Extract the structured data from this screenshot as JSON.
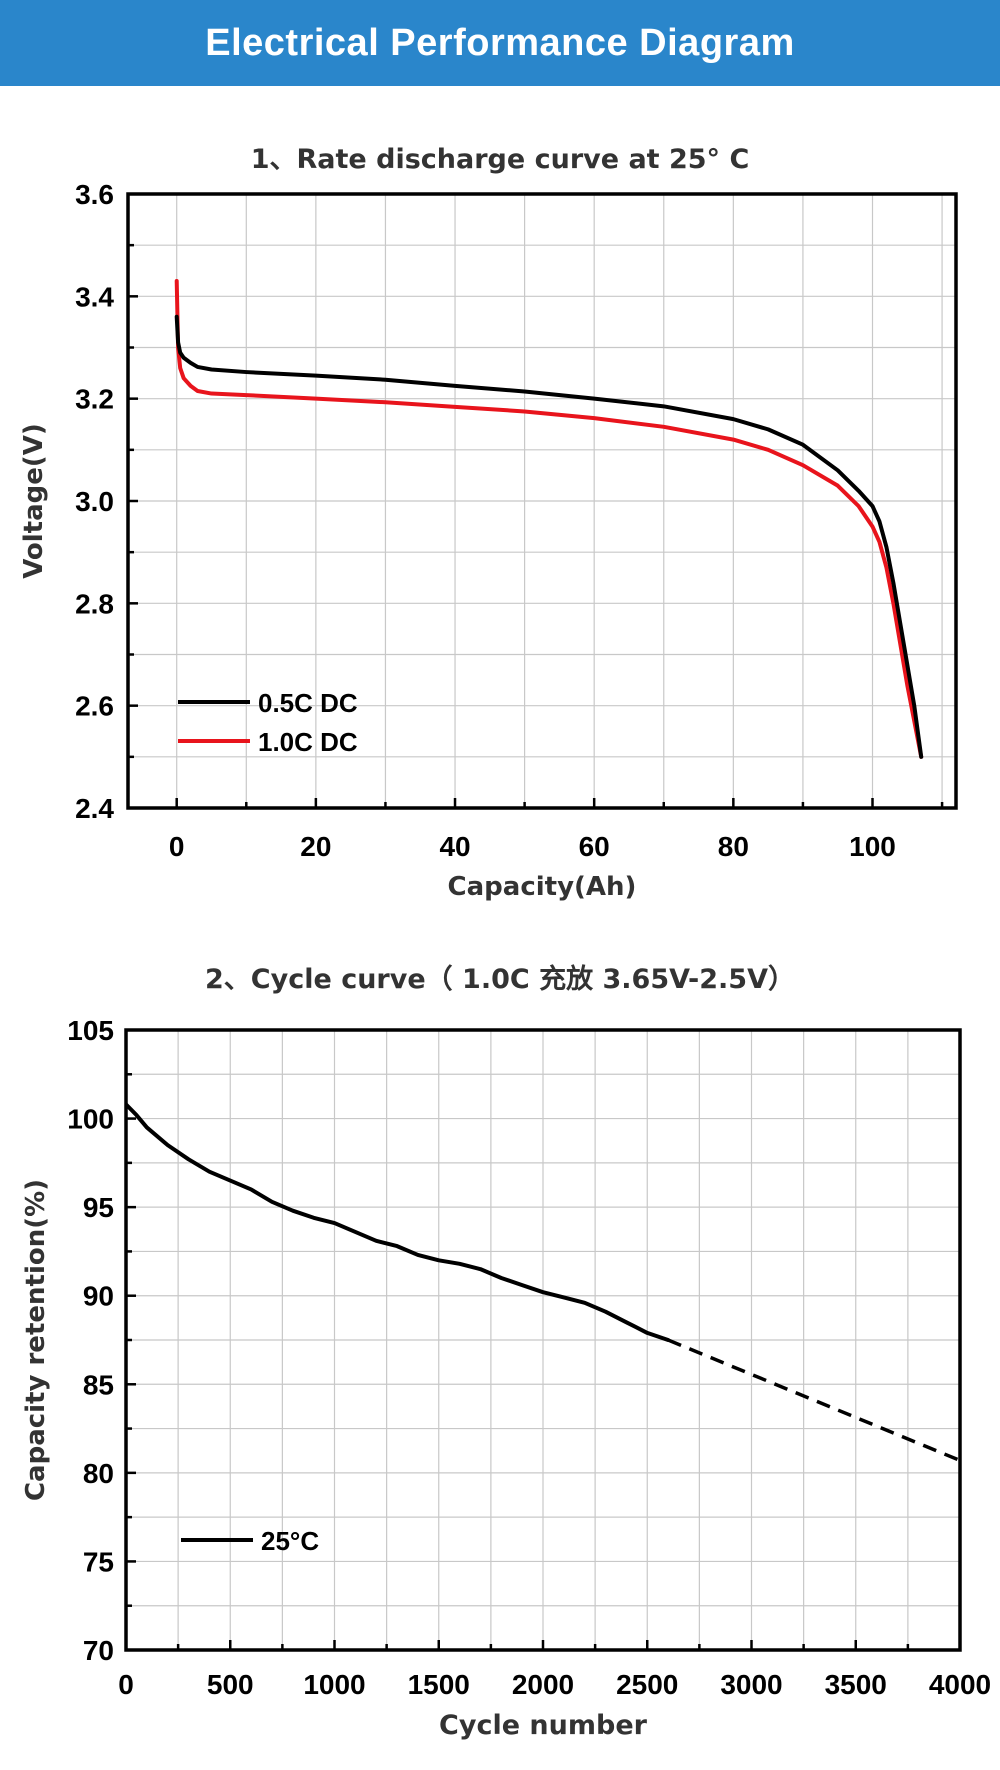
{
  "header": {
    "title": "Electrical Performance Diagram"
  },
  "chart_data": [
    {
      "type": "line",
      "title": "1、Rate discharge curve at 25° C",
      "xlabel": "Capacity(Ah)",
      "ylabel": "Voltage(V)",
      "xlim": [
        -7,
        112
      ],
      "ylim": [
        2.4,
        3.6
      ],
      "xticks": [
        0,
        20,
        40,
        60,
        80,
        100
      ],
      "yticks": [
        2.4,
        2.6,
        2.8,
        3.0,
        3.2,
        3.4,
        3.6
      ],
      "xtick_labels": [
        "0",
        "20",
        "40",
        "60",
        "80",
        "100"
      ],
      "ytick_labels": [
        "2.4",
        "2.6",
        "2.8",
        "3.0",
        "3.2",
        "3.4",
        "3.6"
      ],
      "grid": true,
      "legend_position": "bottom-left",
      "series": [
        {
          "name": "0.5C DC",
          "color": "#000000",
          "x": [
            0,
            0.2,
            0.5,
            1,
            2,
            3,
            5,
            10,
            20,
            30,
            40,
            50,
            60,
            70,
            80,
            85,
            90,
            95,
            98,
            100,
            101,
            102,
            103,
            104,
            105,
            106,
            107
          ],
          "y": [
            3.36,
            3.31,
            3.29,
            3.28,
            3.27,
            3.262,
            3.257,
            3.252,
            3.245,
            3.237,
            3.225,
            3.214,
            3.2,
            3.185,
            3.16,
            3.14,
            3.11,
            3.06,
            3.02,
            2.99,
            2.96,
            2.91,
            2.84,
            2.76,
            2.68,
            2.6,
            2.5
          ]
        },
        {
          "name": "1.0C DC",
          "color": "#e8141c",
          "x": [
            0,
            0.2,
            0.5,
            1,
            2,
            3,
            5,
            10,
            20,
            30,
            40,
            50,
            60,
            70,
            80,
            85,
            90,
            95,
            98,
            100,
            101,
            102,
            103,
            104,
            105,
            106,
            107
          ],
          "y": [
            3.43,
            3.3,
            3.26,
            3.24,
            3.225,
            3.215,
            3.21,
            3.207,
            3.2,
            3.193,
            3.184,
            3.175,
            3.162,
            3.145,
            3.12,
            3.1,
            3.07,
            3.03,
            2.99,
            2.95,
            2.92,
            2.87,
            2.8,
            2.72,
            2.64,
            2.57,
            2.5
          ]
        }
      ]
    },
    {
      "type": "line",
      "title": "2、Cycle curve（ 1.0C 充放 3.65V-2.5V）",
      "xlabel": "Cycle number",
      "ylabel": "Capacity retention(%)",
      "xlim": [
        0,
        4000
      ],
      "ylim": [
        70,
        105
      ],
      "xticks": [
        0,
        500,
        1000,
        1500,
        2000,
        2500,
        3000,
        3500,
        4000
      ],
      "yticks": [
        70,
        75,
        80,
        85,
        90,
        95,
        100,
        105
      ],
      "xtick_labels": [
        "0",
        "500",
        "1000",
        "1500",
        "2000",
        "2500",
        "3000",
        "3500",
        "4000"
      ],
      "ytick_labels": [
        "70",
        "75",
        "80",
        "85",
        "90",
        "95",
        "100",
        "105"
      ],
      "grid": true,
      "legend_position": "bottom-left",
      "series": [
        {
          "name": "25°C",
          "color": "#000000",
          "x": [
            0,
            50,
            100,
            200,
            300,
            400,
            500,
            600,
            700,
            800,
            900,
            1000,
            1100,
            1200,
            1300,
            1400,
            1500,
            1600,
            1700,
            1800,
            1900,
            2000,
            2100,
            2200,
            2300,
            2400,
            2500,
            2600
          ],
          "y": [
            100.8,
            100.2,
            99.5,
            98.5,
            97.7,
            97.0,
            96.5,
            96.0,
            95.3,
            94.8,
            94.4,
            94.1,
            93.6,
            93.1,
            92.8,
            92.3,
            92.0,
            91.8,
            91.5,
            91.0,
            90.6,
            90.2,
            89.9,
            89.6,
            89.1,
            88.5,
            87.9,
            87.5
          ]
        },
        {
          "name": "",
          "color": "#000000",
          "style": "dashed",
          "x": [
            2600,
            4000
          ],
          "y": [
            87.5,
            80.7
          ]
        }
      ]
    }
  ]
}
